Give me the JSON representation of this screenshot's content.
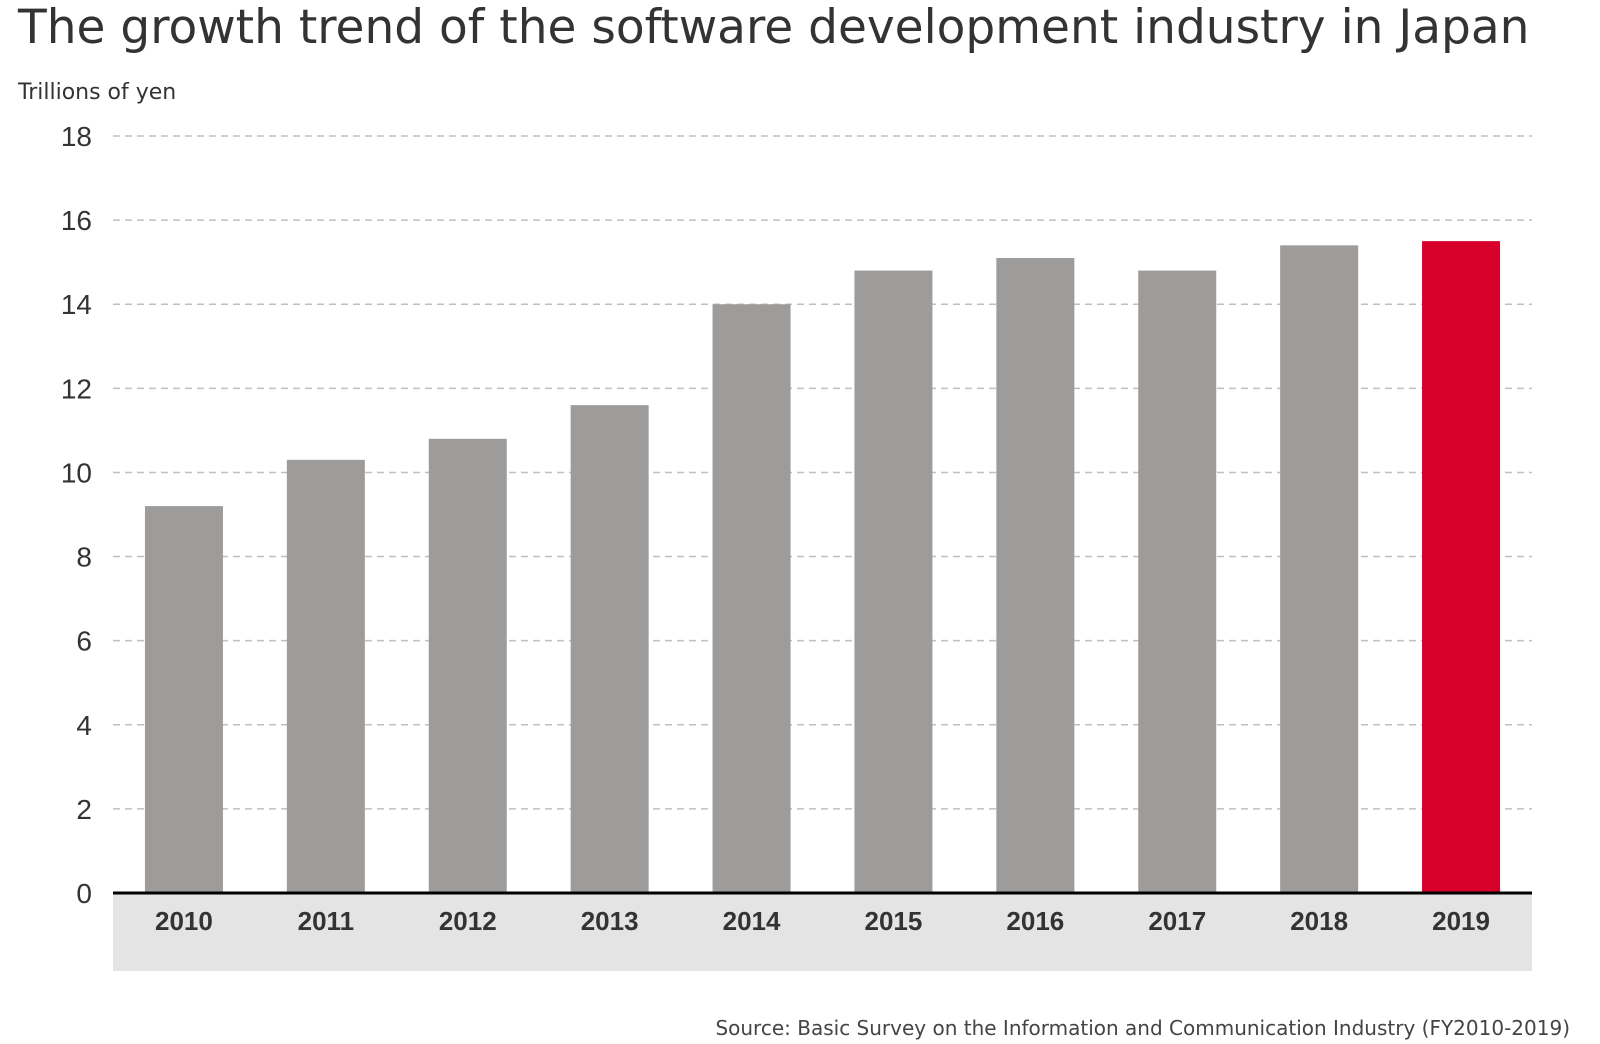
{
  "chart_data": {
    "type": "bar",
    "title": "The growth trend of the software development industry in Japan",
    "ylabel": "Trillions of yen",
    "xlabel": "",
    "categories": [
      "2010",
      "2011",
      "2012",
      "2013",
      "2014",
      "2015",
      "2016",
      "2017",
      "2018",
      "2019"
    ],
    "values": [
      9.2,
      10.3,
      10.8,
      11.6,
      14.0,
      14.8,
      15.1,
      14.8,
      15.4,
      15.5
    ],
    "ylim": [
      0,
      18
    ],
    "yticks": [
      "0",
      "2",
      "4",
      "6",
      "8",
      "10",
      "12",
      "14",
      "16",
      "18"
    ],
    "grid": true,
    "highlight_category": "2019",
    "colors": {
      "bar": "#9d9c9a",
      "highlight": "#d7002a",
      "grid": "#bfbfbf",
      "axis": "#000000",
      "xaxis_band": "#e4e4e4"
    },
    "source": "Source: Basic Survey on the Information and Communication Industry (FY2010-2019)"
  }
}
